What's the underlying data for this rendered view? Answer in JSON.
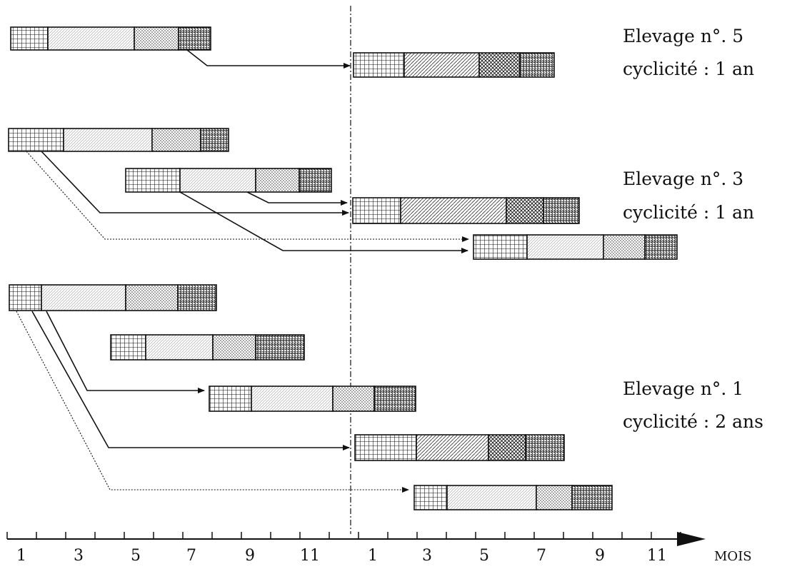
{
  "title": "",
  "groups": [
    {
      "name": "Elevage n°. 5",
      "cyclicity": "cyclicité : 1 an"
    },
    {
      "name": "Elevage n°. 3",
      "cyclicity": "cyclicité : 1 an"
    },
    {
      "name": "Elevage n°. 1",
      "cyclicity": "cyclicité : 2 ans"
    }
  ],
  "axis": {
    "unit_label": "MOIS",
    "tick_labels": [
      "1",
      "3",
      "5",
      "7",
      "9",
      "11",
      "1",
      "3",
      "5",
      "7",
      "9",
      "11"
    ]
  },
  "colors": {
    "ink": "#111111",
    "fill": "#ffffff"
  }
}
